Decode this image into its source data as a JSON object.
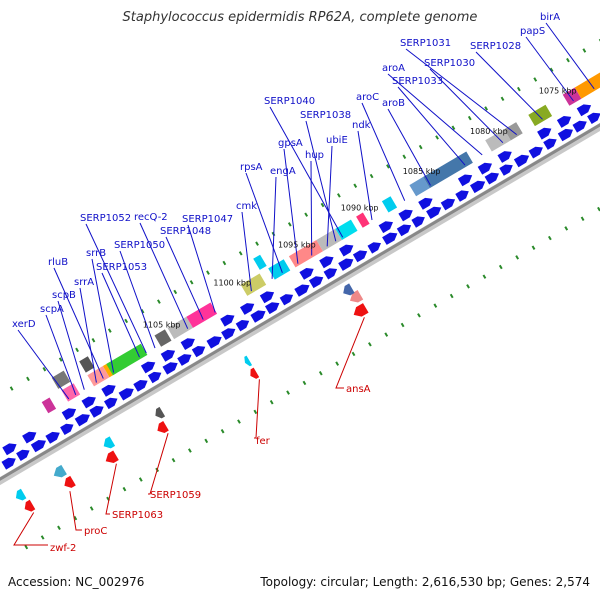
{
  "title": "Staphylococcus epidermidis RP62A, complete genome",
  "footer": {
    "accession": "Accession: NC_002976",
    "summary": "Topology: circular; Length: 2,616,530 bp; Genes: 2,574"
  },
  "colors": {
    "backbone": "#888888",
    "forward_gene": "#1010e0",
    "label_forward": "#1010c8",
    "label_reverse": "#cc0000",
    "reverse_gene": "#ee1111",
    "tick": "#2a8a2a"
  },
  "kbp_marks": [
    "1075 kbp",
    "1080 kbp",
    "1085 kbp",
    "1090 kbp",
    "1095 kbp",
    "1100 kbp",
    "1105 kbp"
  ],
  "forward_labels": [
    "xerD",
    "scpA",
    "scpB",
    "srrA",
    "rluB",
    "srrB",
    "SERP1053",
    "SERP1050",
    "SERP1052",
    "recQ-2",
    "SERP1048",
    "SERP1047",
    "cmk",
    "engA",
    "rpsA",
    "gpsA",
    "hup",
    "ubiE",
    "SERP1038",
    "SERP1040",
    "ndk",
    "aroC",
    "aroB",
    "SERP1033",
    "aroA",
    "SERP1030",
    "SERP1031",
    "SERP1028",
    "papS",
    "birA"
  ],
  "reverse_labels": [
    "zwf-2",
    "proC",
    "SERP1063",
    "SERP1059",
    "fer",
    "ansA"
  ]
}
